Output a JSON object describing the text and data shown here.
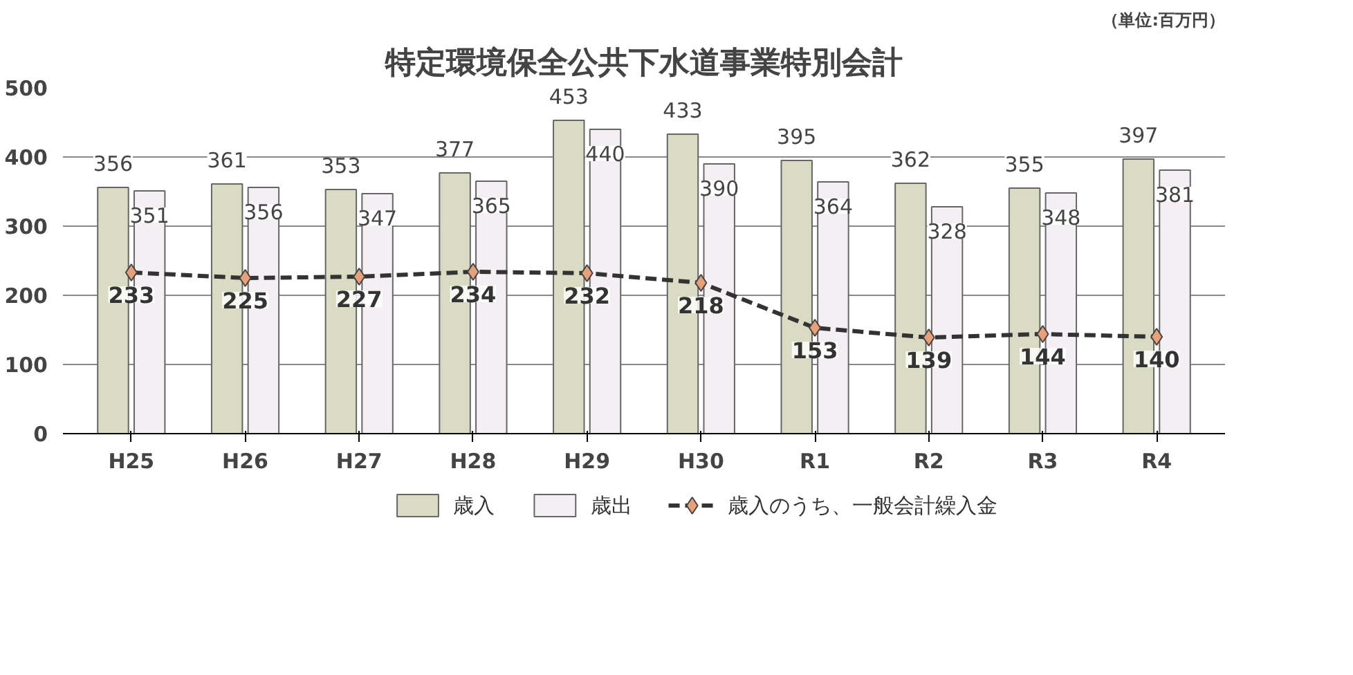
{
  "chart_data": {
    "type": "bar",
    "title": "特定環境保全公共下水道事業特別会計",
    "annotations": [
      "（単位:百万円）"
    ],
    "categories": [
      "H25",
      "H26",
      "H27",
      "H28",
      "H29",
      "H30",
      "R1",
      "R2",
      "R3",
      "R4"
    ],
    "series": [
      {
        "name": "歳入",
        "color": "#d9dcc2",
        "values": [
          356,
          361,
          353,
          377,
          453,
          433,
          395,
          362,
          355,
          397
        ]
      },
      {
        "name": "歳出",
        "color": "#f3eff3",
        "values": [
          351,
          356,
          347,
          365,
          440,
          390,
          364,
          328,
          348,
          381
        ]
      },
      {
        "name": "歳入のうち、一般会計繰入金",
        "type": "line",
        "color": "#333333",
        "marker": "diamond",
        "line_style": "dashed",
        "values": [
          233,
          225,
          227,
          234,
          232,
          218,
          153,
          139,
          144,
          140
        ]
      }
    ],
    "ylim": [
      0,
      500
    ],
    "yticks": [
      0,
      100,
      200,
      300,
      400,
      500
    ],
    "grid": "y",
    "legend": "bottom",
    "data_labels": true
  }
}
